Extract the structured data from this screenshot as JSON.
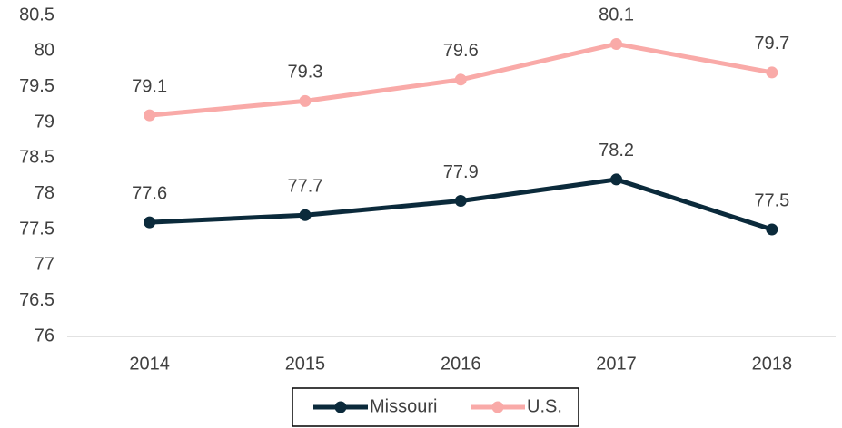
{
  "chart_data": {
    "type": "line",
    "categories": [
      "2014",
      "2015",
      "2016",
      "2017",
      "2018"
    ],
    "series": [
      {
        "name": "Missouri",
        "color": "#0b2a3b",
        "values": [
          77.6,
          77.7,
          77.9,
          78.2,
          77.5
        ]
      },
      {
        "name": "U.S.",
        "color": "#f9aaa8",
        "values": [
          79.1,
          79.3,
          79.6,
          80.1,
          79.7
        ]
      }
    ],
    "ylim": [
      76,
      80.5
    ],
    "yticks": [
      76,
      76.5,
      77,
      77.5,
      78,
      78.5,
      79,
      79.5,
      80,
      80.5
    ],
    "grid": false,
    "legend": "bottom"
  }
}
